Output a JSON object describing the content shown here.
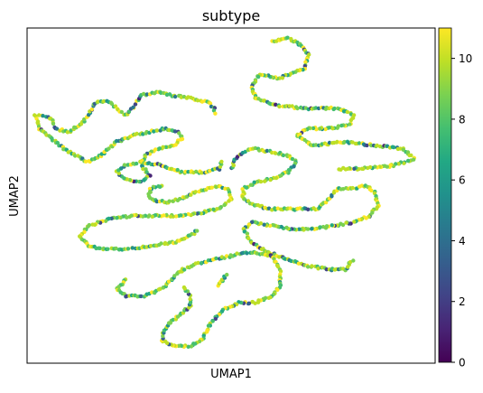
{
  "chart_data": {
    "type": "scatter",
    "title": "subtype",
    "xlabel": "UMAP1",
    "ylabel": "UMAP2",
    "x_ticks": [],
    "y_ticks": [],
    "colorbar": {
      "colormap": "viridis",
      "range": [
        0,
        11
      ],
      "ticks": [
        0,
        2,
        4,
        6,
        8,
        10
      ],
      "tick_labels": [
        "0",
        "2",
        "4",
        "6",
        "8",
        "10"
      ]
    },
    "grid": false,
    "legend": "colorbar-right",
    "value_distribution_note_hidden": true,
    "series": [
      {
        "points_approx": "continuous thin curved strands of cells; color values mostly 8–11 with scattered lower values",
        "strands": [
          {
            "path": [
              [
                0.6,
                0.96
              ],
              [
                0.64,
                0.97
              ],
              [
                0.67,
                0.95
              ],
              [
                0.69,
                0.92
              ],
              [
                0.68,
                0.88
              ],
              [
                0.62,
                0.85
              ],
              [
                0.57,
                0.86
              ],
              [
                0.55,
                0.83
              ],
              [
                0.56,
                0.79
              ],
              [
                0.61,
                0.77
              ],
              [
                0.68,
                0.76
              ],
              [
                0.76,
                0.76
              ],
              [
                0.8,
                0.74
              ],
              [
                0.79,
                0.71
              ],
              [
                0.74,
                0.7
              ],
              [
                0.69,
                0.7
              ],
              [
                0.66,
                0.68
              ],
              [
                0.7,
                0.65
              ],
              [
                0.78,
                0.66
              ],
              [
                0.85,
                0.65
              ],
              [
                0.92,
                0.64
              ],
              [
                0.95,
                0.61
              ],
              [
                0.9,
                0.59
              ],
              [
                0.82,
                0.58
              ],
              [
                0.76,
                0.58
              ]
            ]
          },
          {
            "path": [
              [
                0.03,
                0.74
              ],
              [
                0.06,
                0.73
              ],
              [
                0.07,
                0.7
              ],
              [
                0.1,
                0.69
              ],
              [
                0.13,
                0.71
              ],
              [
                0.15,
                0.74
              ],
              [
                0.17,
                0.78
              ],
              [
                0.2,
                0.78
              ],
              [
                0.22,
                0.76
              ],
              [
                0.24,
                0.74
              ],
              [
                0.26,
                0.76
              ],
              [
                0.28,
                0.8
              ],
              [
                0.32,
                0.81
              ],
              [
                0.35,
                0.8
              ],
              [
                0.4,
                0.79
              ],
              [
                0.44,
                0.78
              ],
              [
                0.46,
                0.76
              ],
              [
                0.46,
                0.74
              ]
            ]
          },
          {
            "path": [
              [
                0.02,
                0.74
              ],
              [
                0.03,
                0.7
              ],
              [
                0.06,
                0.67
              ],
              [
                0.09,
                0.64
              ],
              [
                0.12,
                0.62
              ],
              [
                0.15,
                0.6
              ],
              [
                0.18,
                0.62
              ],
              [
                0.22,
                0.66
              ],
              [
                0.26,
                0.68
              ],
              [
                0.3,
                0.69
              ],
              [
                0.34,
                0.7
              ],
              [
                0.37,
                0.69
              ],
              [
                0.38,
                0.67
              ],
              [
                0.36,
                0.65
              ],
              [
                0.32,
                0.64
              ],
              [
                0.29,
                0.62
              ],
              [
                0.28,
                0.59
              ],
              [
                0.3,
                0.56
              ],
              [
                0.28,
                0.54
              ],
              [
                0.24,
                0.55
              ],
              [
                0.22,
                0.57
              ],
              [
                0.24,
                0.59
              ],
              [
                0.28,
                0.6
              ],
              [
                0.33,
                0.59
              ],
              [
                0.38,
                0.57
              ],
              [
                0.43,
                0.57
              ],
              [
                0.47,
                0.58
              ],
              [
                0.48,
                0.61
              ]
            ]
          },
          {
            "path": [
              [
                0.33,
                0.53
              ],
              [
                0.3,
                0.52
              ],
              [
                0.3,
                0.49
              ],
              [
                0.34,
                0.48
              ],
              [
                0.38,
                0.49
              ],
              [
                0.41,
                0.51
              ],
              [
                0.44,
                0.52
              ],
              [
                0.47,
                0.53
              ],
              [
                0.49,
                0.52
              ],
              [
                0.5,
                0.49
              ],
              [
                0.47,
                0.46
              ],
              [
                0.43,
                0.45
              ],
              [
                0.38,
                0.44
              ],
              [
                0.32,
                0.44
              ],
              [
                0.26,
                0.44
              ],
              [
                0.2,
                0.43
              ],
              [
                0.15,
                0.41
              ],
              [
                0.13,
                0.38
              ],
              [
                0.15,
                0.35
              ],
              [
                0.19,
                0.34
              ],
              [
                0.24,
                0.34
              ],
              [
                0.3,
                0.35
              ],
              [
                0.36,
                0.36
              ],
              [
                0.4,
                0.38
              ],
              [
                0.42,
                0.4
              ]
            ]
          },
          {
            "path": [
              [
                0.5,
                0.58
              ],
              [
                0.51,
                0.61
              ],
              [
                0.53,
                0.63
              ],
              [
                0.56,
                0.64
              ],
              [
                0.6,
                0.63
              ],
              [
                0.64,
                0.62
              ],
              [
                0.66,
                0.6
              ],
              [
                0.64,
                0.57
              ],
              [
                0.6,
                0.55
              ],
              [
                0.56,
                0.54
              ],
              [
                0.53,
                0.52
              ],
              [
                0.53,
                0.49
              ],
              [
                0.56,
                0.47
              ],
              [
                0.6,
                0.46
              ],
              [
                0.66,
                0.46
              ],
              [
                0.71,
                0.46
              ],
              [
                0.74,
                0.49
              ],
              [
                0.76,
                0.52
              ],
              [
                0.8,
                0.52
              ],
              [
                0.83,
                0.53
              ],
              [
                0.85,
                0.51
              ],
              [
                0.86,
                0.47
              ],
              [
                0.84,
                0.44
              ],
              [
                0.8,
                0.42
              ],
              [
                0.75,
                0.41
              ],
              [
                0.7,
                0.4
              ],
              [
                0.65,
                0.4
              ],
              [
                0.6,
                0.41
              ],
              [
                0.55,
                0.42
              ],
              [
                0.53,
                0.4
              ],
              [
                0.55,
                0.36
              ],
              [
                0.59,
                0.33
              ],
              [
                0.64,
                0.31
              ],
              [
                0.69,
                0.29
              ],
              [
                0.74,
                0.28
              ],
              [
                0.78,
                0.28
              ],
              [
                0.8,
                0.31
              ]
            ]
          },
          {
            "path": [
              [
                0.24,
                0.25
              ],
              [
                0.22,
                0.22
              ],
              [
                0.24,
                0.2
              ],
              [
                0.28,
                0.2
              ],
              [
                0.31,
                0.21
              ],
              [
                0.34,
                0.23
              ],
              [
                0.37,
                0.27
              ],
              [
                0.4,
                0.29
              ],
              [
                0.43,
                0.3
              ],
              [
                0.46,
                0.31
              ],
              [
                0.5,
                0.32
              ],
              [
                0.53,
                0.33
              ],
              [
                0.56,
                0.33
              ],
              [
                0.6,
                0.32
              ],
              [
                0.62,
                0.28
              ],
              [
                0.62,
                0.23
              ],
              [
                0.6,
                0.2
              ],
              [
                0.56,
                0.18
              ],
              [
                0.52,
                0.18
              ],
              [
                0.48,
                0.16
              ],
              [
                0.45,
                0.12
              ],
              [
                0.43,
                0.07
              ],
              [
                0.4,
                0.05
              ],
              [
                0.36,
                0.05
              ],
              [
                0.33,
                0.07
              ],
              [
                0.34,
                0.11
              ],
              [
                0.37,
                0.14
              ],
              [
                0.4,
                0.17
              ],
              [
                0.4,
                0.2
              ],
              [
                0.38,
                0.23
              ]
            ]
          },
          {
            "path": [
              [
                0.47,
                0.23
              ],
              [
                0.48,
                0.25
              ],
              [
                0.49,
                0.27
              ]
            ]
          }
        ]
      }
    ]
  }
}
